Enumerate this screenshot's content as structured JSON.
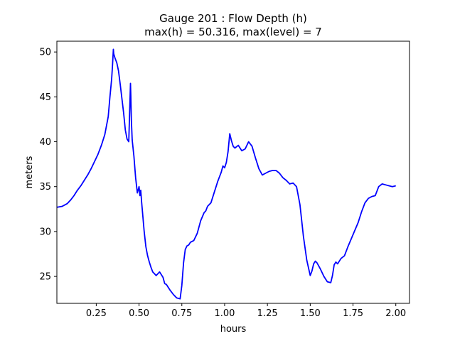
{
  "chart_data": {
    "type": "line",
    "title_lines": [
      "Gauge 201 : Flow Depth (h)",
      "max(h) =  50.316,    max(level) = 7"
    ],
    "xlabel": "hours",
    "ylabel": "meters",
    "xlim": [
      0.02,
      2.08
    ],
    "ylim": [
      22.0,
      51.2
    ],
    "xticks": [
      0.25,
      0.5,
      0.75,
      1.0,
      1.25,
      1.5,
      1.75,
      2.0
    ],
    "xtick_labels": [
      "0.25",
      "0.50",
      "0.75",
      "1.00",
      "1.25",
      "1.50",
      "1.75",
      "2.00"
    ],
    "yticks": [
      25,
      30,
      35,
      40,
      45,
      50
    ],
    "ytick_labels": [
      "25",
      "30",
      "35",
      "40",
      "45",
      "50"
    ],
    "grid": false,
    "line_color": "#0000ff",
    "series": [
      {
        "x": [
          0.02,
          0.05,
          0.08,
          0.1,
          0.12,
          0.14,
          0.16,
          0.18,
          0.2,
          0.22,
          0.24,
          0.26,
          0.28,
          0.3,
          0.32,
          0.33,
          0.34,
          0.345,
          0.35,
          0.352,
          0.36,
          0.37,
          0.38,
          0.39,
          0.4,
          0.41,
          0.42,
          0.43,
          0.44,
          0.45,
          0.452,
          0.455,
          0.46,
          0.47,
          0.48,
          0.49,
          0.5,
          0.505,
          0.51,
          0.515,
          0.52,
          0.53,
          0.54,
          0.55,
          0.56,
          0.57,
          0.58,
          0.59,
          0.6,
          0.62,
          0.63,
          0.64,
          0.65,
          0.66,
          0.68,
          0.7,
          0.72,
          0.74,
          0.75,
          0.76,
          0.77,
          0.78,
          0.79,
          0.8,
          0.82,
          0.84,
          0.86,
          0.88,
          0.89,
          0.9,
          0.92,
          0.94,
          0.96,
          0.97,
          0.98,
          0.99,
          1.0,
          1.01,
          1.02,
          1.03,
          1.04,
          1.05,
          1.06,
          1.08,
          1.1,
          1.12,
          1.14,
          1.16,
          1.18,
          1.2,
          1.22,
          1.24,
          1.26,
          1.28,
          1.3,
          1.32,
          1.34,
          1.36,
          1.38,
          1.4,
          1.42,
          1.44,
          1.46,
          1.48,
          1.5,
          1.51,
          1.52,
          1.53,
          1.54,
          1.56,
          1.58,
          1.6,
          1.62,
          1.63,
          1.64,
          1.65,
          1.66,
          1.68,
          1.7,
          1.72,
          1.74,
          1.76,
          1.78,
          1.8,
          1.82,
          1.84,
          1.86,
          1.88,
          1.9,
          1.92,
          1.94,
          1.96,
          1.98,
          2.0
        ],
        "values": [
          32.7,
          32.8,
          33.1,
          33.5,
          34.0,
          34.6,
          35.1,
          35.7,
          36.3,
          37.0,
          37.8,
          38.6,
          39.6,
          40.8,
          42.8,
          45.0,
          47.0,
          48.5,
          50.3,
          49.8,
          49.3,
          48.8,
          47.9,
          46.4,
          44.8,
          43.2,
          41.3,
          40.3,
          40.0,
          46.5,
          45.2,
          42.5,
          40.2,
          38.4,
          36.0,
          34.3,
          35.0,
          34.0,
          34.6,
          33.3,
          32.2,
          30.0,
          28.3,
          27.3,
          26.6,
          26.0,
          25.5,
          25.3,
          25.1,
          25.5,
          25.2,
          24.9,
          24.2,
          24.1,
          23.5,
          23.0,
          22.6,
          22.5,
          24.0,
          26.5,
          28.0,
          28.4,
          28.5,
          28.8,
          29.0,
          29.8,
          31.2,
          32.1,
          32.3,
          32.8,
          33.2,
          34.4,
          35.6,
          36.1,
          36.6,
          37.3,
          37.1,
          37.7,
          38.9,
          40.9,
          40.1,
          39.5,
          39.3,
          39.6,
          39.0,
          39.2,
          40.0,
          39.5,
          38.2,
          37.0,
          36.3,
          36.5,
          36.7,
          36.8,
          36.8,
          36.5,
          36.0,
          35.7,
          35.3,
          35.4,
          35.0,
          33.0,
          29.5,
          26.8,
          25.1,
          25.6,
          26.4,
          26.7,
          26.5,
          25.8,
          25.0,
          24.4,
          24.3,
          25.1,
          26.3,
          26.6,
          26.4,
          27.0,
          27.3,
          28.3,
          29.2,
          30.1,
          31.0,
          32.2,
          33.2,
          33.7,
          33.9,
          34.0,
          35.0,
          35.3,
          35.2,
          35.1,
          35.0,
          35.1
        ]
      }
    ]
  }
}
